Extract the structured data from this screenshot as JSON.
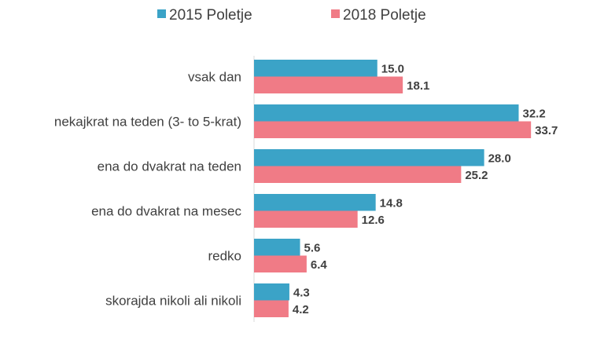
{
  "chart_data": {
    "type": "bar",
    "orientation": "horizontal",
    "categories": [
      "vsak dan",
      "nekajkrat na teden (3- to 5-krat)",
      "ena do dvakrat na teden",
      "ena do dvakrat na mesec",
      "redko",
      "skorajda nikoli ali nikoli"
    ],
    "series": [
      {
        "name": "2015 Poletje",
        "color": "#3BA3C7",
        "values": [
          15.0,
          32.2,
          28.0,
          14.8,
          5.6,
          4.3
        ]
      },
      {
        "name": "2018 Poletje",
        "color": "#F07B86",
        "values": [
          18.1,
          33.7,
          25.2,
          12.6,
          6.4,
          4.2
        ]
      }
    ],
    "xlim": [
      0,
      35
    ],
    "grid": false,
    "legend_position": "top-center",
    "data_labels": true
  }
}
